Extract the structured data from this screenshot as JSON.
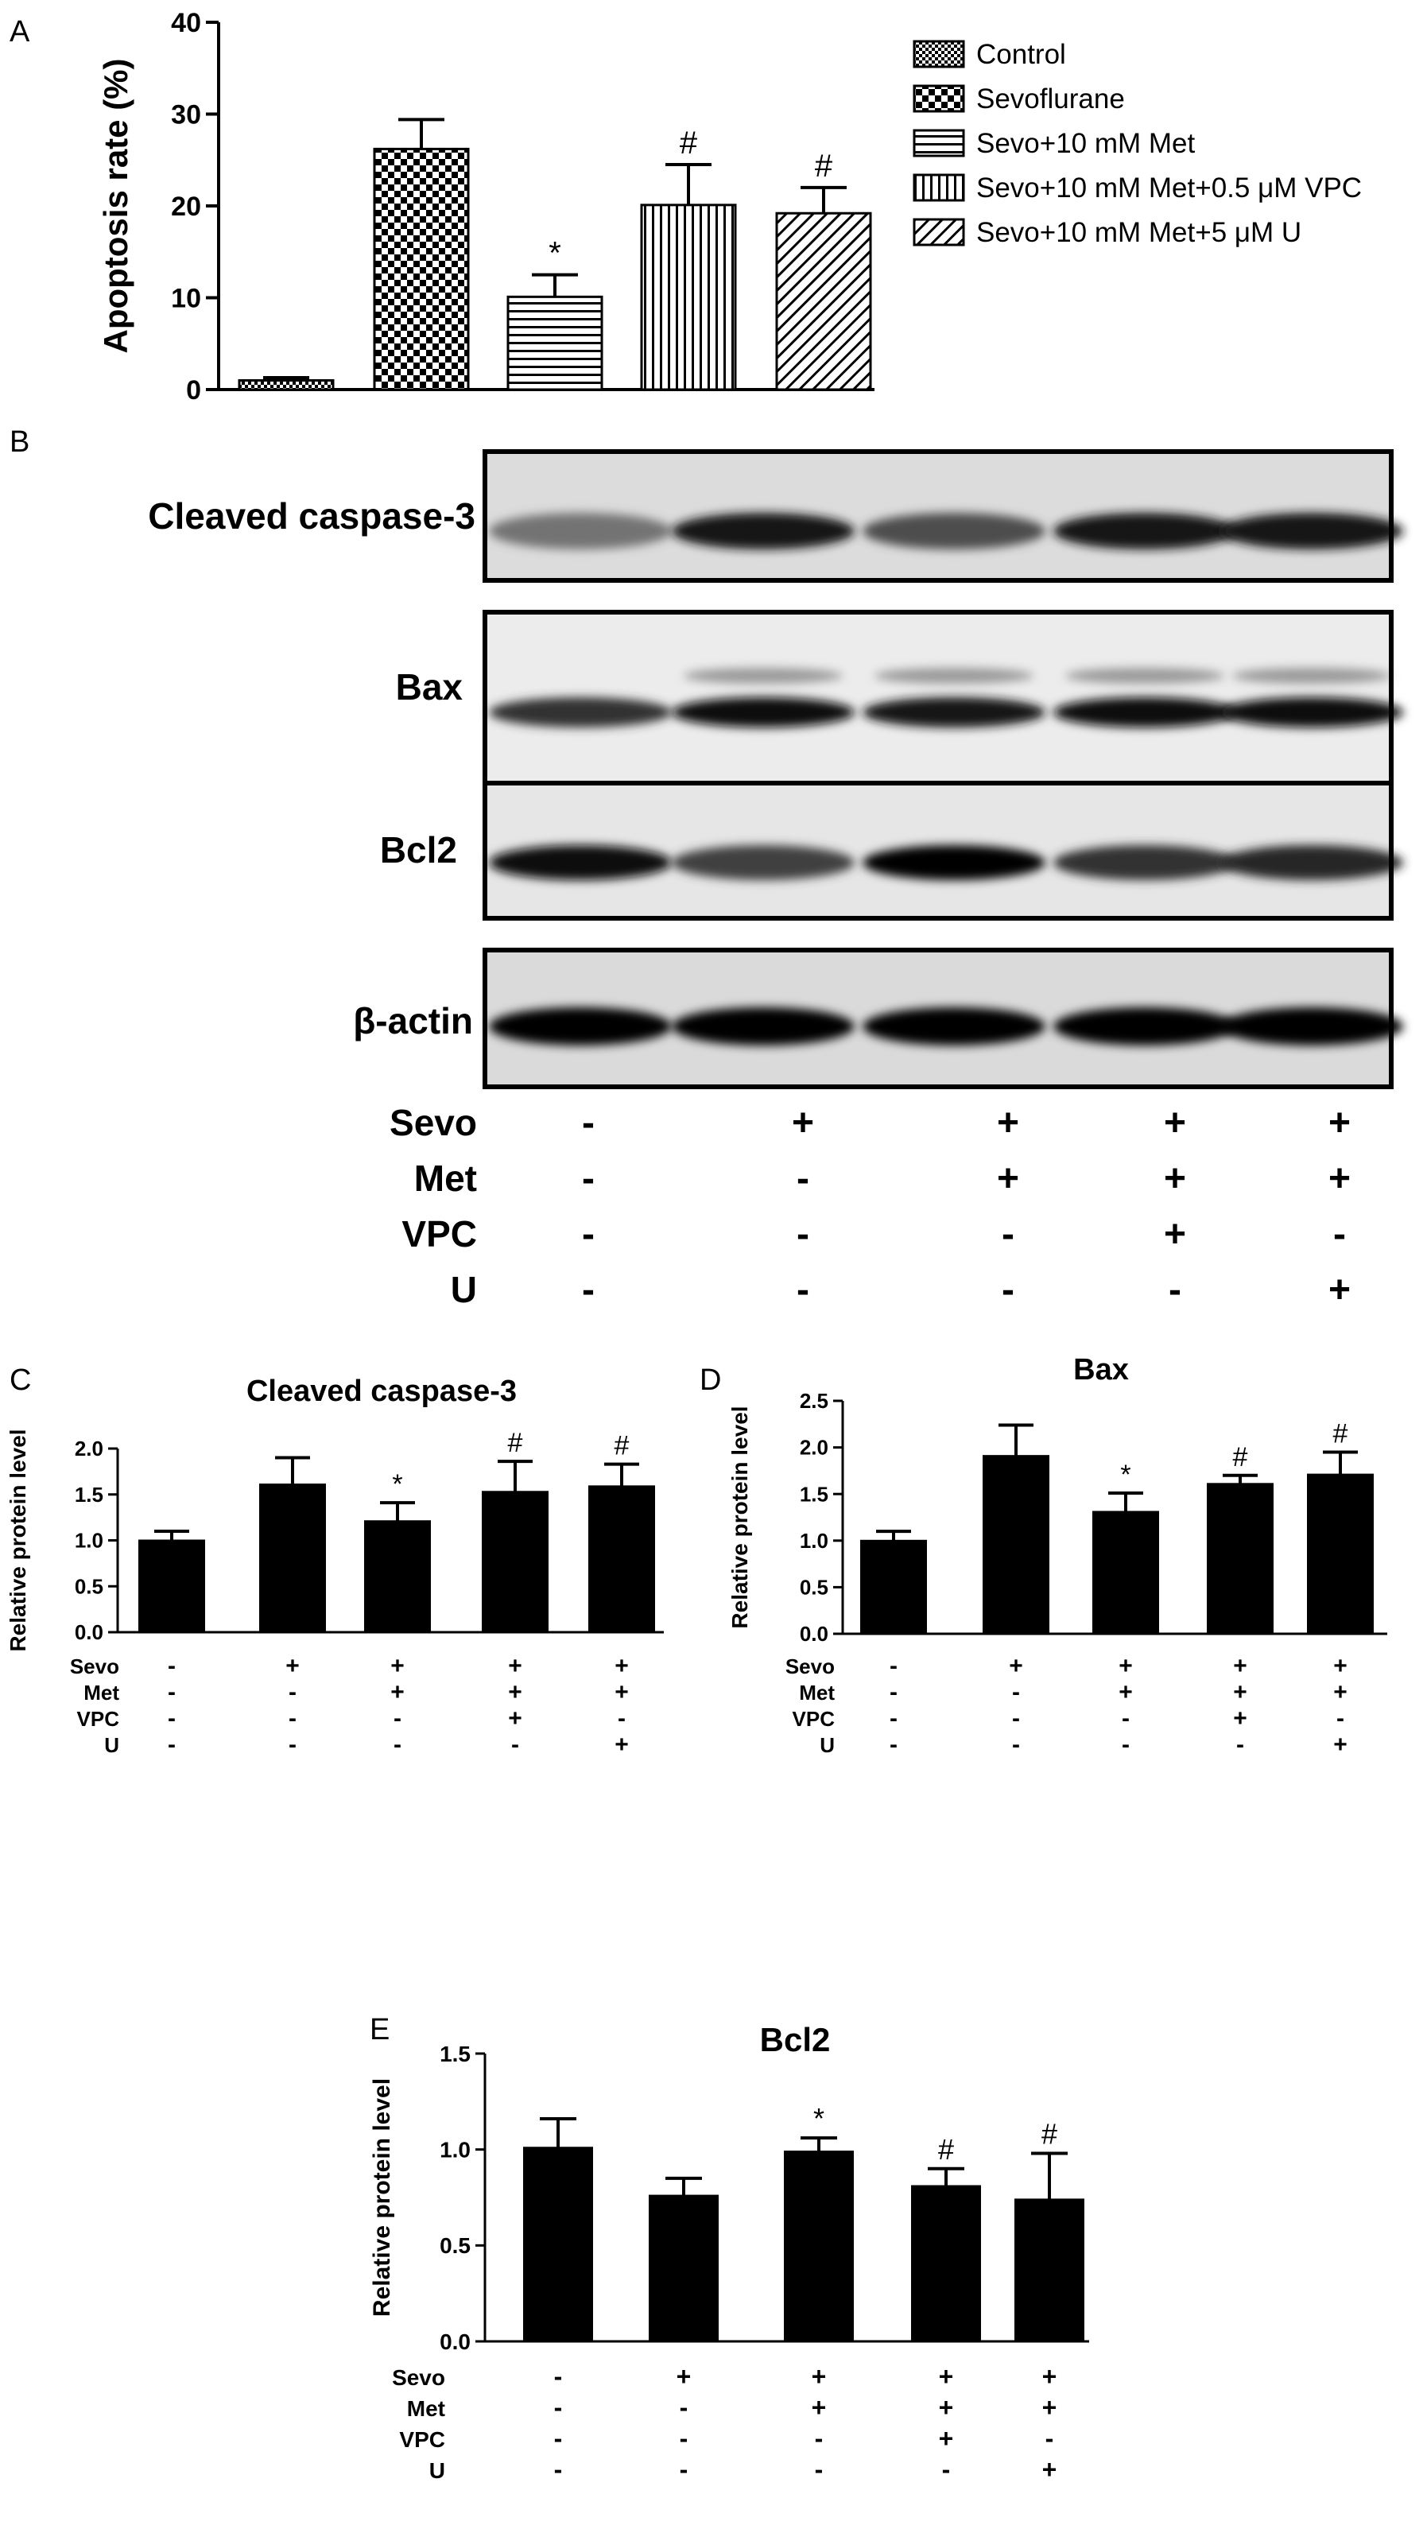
{
  "chart_data": [
    {
      "panel": "A",
      "type": "bar",
      "ylabel": "Apoptosis rate (%)",
      "ylim": [
        0,
        40
      ],
      "yticks": [
        "0",
        "10",
        "20",
        "30",
        "40"
      ],
      "legend_position": "top-right",
      "categories": [
        "Control",
        "Sevoflurane",
        "Sevo+10 mM Met",
        "Sevo+10 mM Met+0.5 μM VPC",
        "Sevo+10 mM Met+5 μM U"
      ],
      "patterns": [
        "checker-small",
        "checker-large",
        "horizontal",
        "vertical",
        "diagonal"
      ],
      "values": [
        1.0,
        26.2,
        10.1,
        20.1,
        19.2
      ],
      "errors": [
        0.3,
        3.2,
        2.4,
        4.4,
        2.8
      ],
      "annotations": [
        "",
        "",
        "*",
        "#",
        "#"
      ]
    },
    {
      "panel": "C",
      "type": "bar",
      "title": "Cleaved caspase-3",
      "ylabel": "Relative protein level",
      "ylim": [
        0,
        2.0
      ],
      "yticks": [
        "0.0",
        "0.5",
        "1.0",
        "1.5",
        "2.0"
      ],
      "values": [
        1.0,
        1.61,
        1.21,
        1.53,
        1.59
      ],
      "errors": [
        0.1,
        0.29,
        0.2,
        0.33,
        0.24
      ],
      "annotations": [
        "",
        "",
        "*",
        "#",
        "#"
      ]
    },
    {
      "panel": "D",
      "type": "bar",
      "title": "Bax",
      "ylabel": "Relative protein level",
      "ylim": [
        0,
        2.5
      ],
      "yticks": [
        "0.0",
        "0.5",
        "1.0",
        "1.5",
        "2.0",
        "2.5"
      ],
      "values": [
        1.0,
        1.91,
        1.31,
        1.61,
        1.71
      ],
      "errors": [
        0.1,
        0.33,
        0.2,
        0.09,
        0.24
      ],
      "annotations": [
        "",
        "",
        "*",
        "#",
        "#"
      ]
    },
    {
      "panel": "E",
      "type": "bar",
      "title": "Bcl2",
      "ylabel": "Relative protein level",
      "ylim": [
        0,
        1.5
      ],
      "yticks": [
        "0.0",
        "0.5",
        "1.0",
        "1.5"
      ],
      "values": [
        1.01,
        0.76,
        0.99,
        0.81,
        0.74
      ],
      "errors": [
        0.15,
        0.09,
        0.07,
        0.09,
        0.24
      ],
      "annotations": [
        "",
        "",
        "*",
        "#",
        "#"
      ]
    }
  ],
  "panel_letters": {
    "A": "A",
    "B": "B",
    "C": "C",
    "D": "D",
    "E": "E"
  },
  "western_blot": {
    "rows": [
      {
        "label": "Cleaved caspase-3"
      },
      {
        "label": "Bax"
      },
      {
        "label": "Bcl2"
      },
      {
        "label": "β-actin"
      }
    ]
  },
  "treatment_table": {
    "rows": [
      "Sevo",
      "Met",
      "VPC",
      "U"
    ],
    "signs": [
      [
        "-",
        "+",
        "+",
        "+",
        "+"
      ],
      [
        "-",
        "-",
        "+",
        "+",
        "+"
      ],
      [
        "-",
        "-",
        "-",
        "+",
        "-"
      ],
      [
        "-",
        "-",
        "-",
        "-",
        "+"
      ]
    ]
  },
  "colors": {
    "bar": "#000000",
    "background": "#ffffff"
  }
}
